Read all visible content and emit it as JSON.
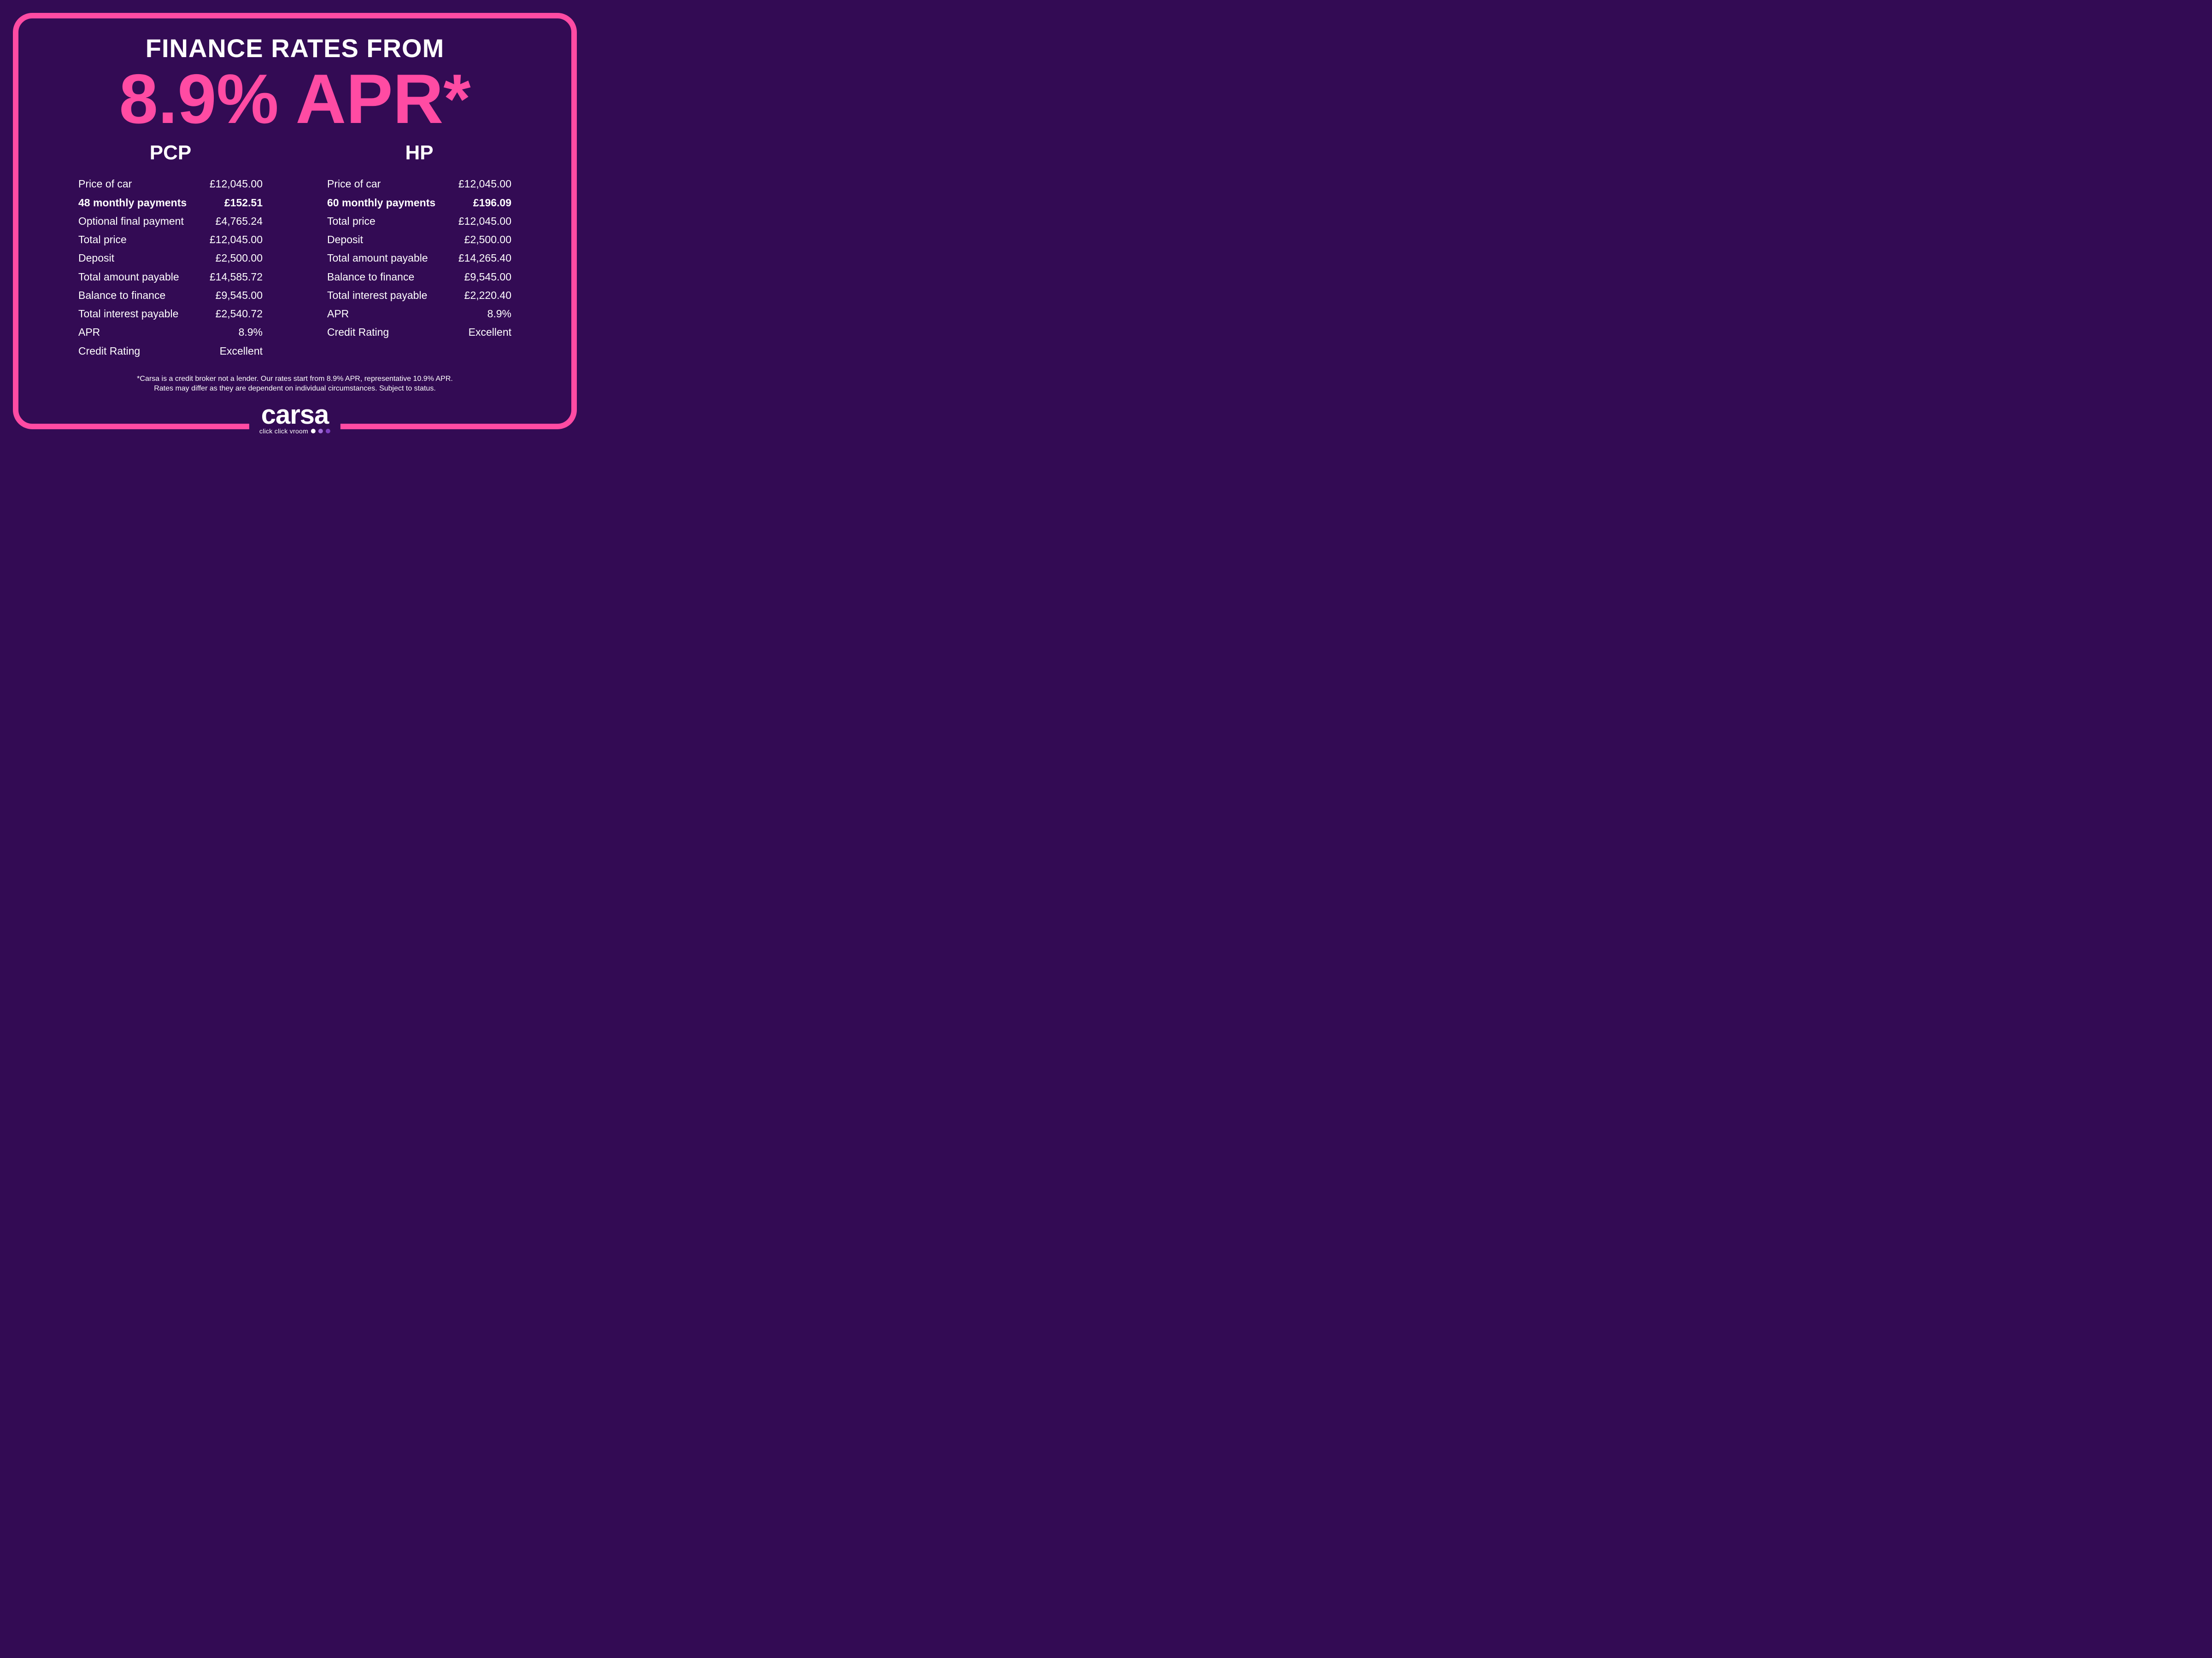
{
  "colors": {
    "background": "#330b54",
    "accent_pink": "#ff4ba3",
    "text": "#ffffff",
    "dot1": "#ffffff",
    "dot2": "#a06bd8",
    "dot3": "#7d3fc0"
  },
  "headline": {
    "intro": "FINANCE RATES FROM",
    "rate": "8.9% APR*"
  },
  "plans": {
    "pcp": {
      "title": "PCP",
      "rows": [
        {
          "label": "Price of car",
          "value": "£12,045.00",
          "bold": false
        },
        {
          "label": "48 monthly payments",
          "value": "£152.51",
          "bold": true
        },
        {
          "label": "Optional final payment",
          "value": "£4,765.24",
          "bold": false
        },
        {
          "label": "Total price",
          "value": "£12,045.00",
          "bold": false
        },
        {
          "label": "Deposit",
          "value": "£2,500.00",
          "bold": false
        },
        {
          "label": "Total amount payable",
          "value": "£14,585.72",
          "bold": false
        },
        {
          "label": "Balance to finance",
          "value": "£9,545.00",
          "bold": false
        },
        {
          "label": "Total interest payable",
          "value": "£2,540.72",
          "bold": false
        },
        {
          "label": "APR",
          "value": "8.9%",
          "bold": false
        },
        {
          "label": "Credit Rating",
          "value": "Excellent",
          "bold": false
        }
      ]
    },
    "hp": {
      "title": "HP",
      "rows": [
        {
          "label": "Price of car",
          "value": "£12,045.00",
          "bold": false
        },
        {
          "label": "60 monthly payments",
          "value": "£196.09",
          "bold": true
        },
        {
          "label": "Total price",
          "value": "£12,045.00",
          "bold": false
        },
        {
          "label": "Deposit",
          "value": "£2,500.00",
          "bold": false
        },
        {
          "label": "Total amount payable",
          "value": "£14,265.40",
          "bold": false
        },
        {
          "label": "Balance to finance",
          "value": "£9,545.00",
          "bold": false
        },
        {
          "label": "Total interest payable",
          "value": "£2,220.40",
          "bold": false
        },
        {
          "label": "APR",
          "value": "8.9%",
          "bold": false
        },
        {
          "label": "Credit Rating",
          "value": "Excellent",
          "bold": false
        }
      ]
    }
  },
  "disclaimer": {
    "line1": "*Carsa is a credit broker not a lender. Our rates start from 8.9% APR, representative 10.9% APR.",
    "line2": "Rates may differ as they are dependent on individual circumstances. Subject to status."
  },
  "brand": {
    "name": "carsa",
    "tagline": "click click vroom"
  }
}
